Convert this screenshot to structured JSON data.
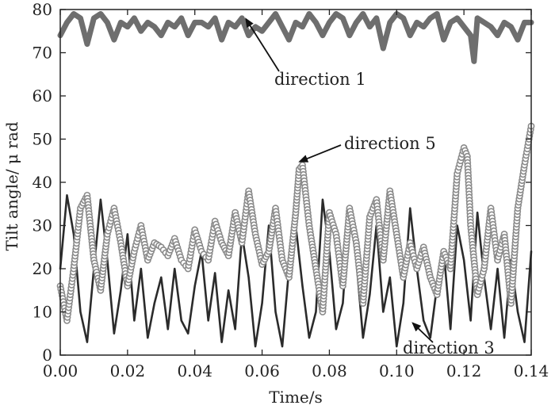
{
  "chart_data": {
    "type": "line",
    "title": "",
    "xlabel": "Time/s",
    "ylabel": "Tilt angle/ μ rad",
    "xlim": [
      0.0,
      0.14
    ],
    "ylim": [
      0,
      80
    ],
    "x_ticks": [
      "0.00",
      "0.02",
      "0.04",
      "0.06",
      "0.08",
      "0.10",
      "0.12",
      "0.14"
    ],
    "y_ticks": [
      "0",
      "10",
      "20",
      "30",
      "40",
      "50",
      "60",
      "70",
      "80"
    ],
    "grid": false,
    "colors": {
      "direction_1": "#6e6e6e",
      "direction_5": "#8a8a8a",
      "direction_3": "#2b2b2b"
    },
    "series": [
      {
        "name": "direction 1",
        "style": "thick-line",
        "x": [
          0.0,
          0.002,
          0.004,
          0.006,
          0.008,
          0.01,
          0.012,
          0.014,
          0.016,
          0.018,
          0.02,
          0.022,
          0.024,
          0.026,
          0.028,
          0.03,
          0.032,
          0.034,
          0.036,
          0.038,
          0.04,
          0.042,
          0.044,
          0.046,
          0.048,
          0.05,
          0.052,
          0.054,
          0.056,
          0.058,
          0.06,
          0.062,
          0.064,
          0.066,
          0.068,
          0.07,
          0.072,
          0.074,
          0.076,
          0.078,
          0.08,
          0.082,
          0.084,
          0.086,
          0.088,
          0.09,
          0.092,
          0.094,
          0.096,
          0.098,
          0.1,
          0.102,
          0.104,
          0.106,
          0.108,
          0.11,
          0.112,
          0.114,
          0.116,
          0.118,
          0.12,
          0.122,
          0.123,
          0.124,
          0.126,
          0.128,
          0.13,
          0.132,
          0.134,
          0.136,
          0.138,
          0.14
        ],
        "y": [
          74,
          77,
          79,
          78,
          72,
          78,
          79,
          77,
          73,
          77,
          76,
          78,
          75,
          77,
          76,
          74,
          77,
          76,
          78,
          74,
          77,
          77,
          76,
          78,
          73,
          77,
          76,
          78,
          74,
          76,
          75,
          77,
          79,
          76,
          73,
          77,
          76,
          79,
          77,
          74,
          77,
          79,
          78,
          74,
          77,
          79,
          76,
          78,
          71,
          77,
          79,
          78,
          74,
          77,
          76,
          78,
          79,
          73,
          77,
          78,
          76,
          74,
          68,
          78,
          77,
          76,
          74,
          77,
          76,
          73,
          77,
          77
        ]
      },
      {
        "name": "direction 5",
        "style": "open-circles",
        "x": [
          0.0,
          0.002,
          0.004,
          0.006,
          0.008,
          0.01,
          0.012,
          0.014,
          0.016,
          0.018,
          0.02,
          0.022,
          0.024,
          0.026,
          0.028,
          0.03,
          0.032,
          0.034,
          0.036,
          0.038,
          0.04,
          0.042,
          0.044,
          0.046,
          0.048,
          0.05,
          0.052,
          0.054,
          0.056,
          0.058,
          0.06,
          0.062,
          0.064,
          0.066,
          0.068,
          0.07,
          0.071,
          0.072,
          0.074,
          0.076,
          0.078,
          0.08,
          0.082,
          0.084,
          0.086,
          0.088,
          0.09,
          0.092,
          0.094,
          0.096,
          0.098,
          0.1,
          0.102,
          0.104,
          0.106,
          0.108,
          0.11,
          0.112,
          0.114,
          0.116,
          0.118,
          0.12,
          0.121,
          0.122,
          0.124,
          0.126,
          0.128,
          0.13,
          0.132,
          0.134,
          0.136,
          0.138,
          0.14
        ],
        "y": [
          16,
          8,
          20,
          34,
          37,
          22,
          15,
          28,
          34,
          26,
          16,
          24,
          30,
          22,
          26,
          25,
          23,
          27,
          22,
          20,
          29,
          24,
          22,
          31,
          26,
          23,
          33,
          26,
          38,
          28,
          21,
          24,
          34,
          22,
          18,
          33,
          43,
          44,
          30,
          20,
          10,
          33,
          28,
          16,
          34,
          26,
          12,
          32,
          36,
          22,
          38,
          28,
          18,
          26,
          20,
          25,
          18,
          14,
          24,
          20,
          42,
          48,
          46,
          30,
          14,
          20,
          34,
          22,
          28,
          12,
          34,
          44,
          53
        ]
      },
      {
        "name": "direction 3",
        "style": "thin-line",
        "x": [
          0.0,
          0.002,
          0.004,
          0.006,
          0.008,
          0.01,
          0.012,
          0.014,
          0.016,
          0.018,
          0.02,
          0.022,
          0.024,
          0.026,
          0.028,
          0.03,
          0.032,
          0.034,
          0.036,
          0.038,
          0.04,
          0.042,
          0.044,
          0.046,
          0.048,
          0.05,
          0.052,
          0.054,
          0.056,
          0.058,
          0.06,
          0.062,
          0.064,
          0.066,
          0.068,
          0.07,
          0.072,
          0.074,
          0.076,
          0.078,
          0.08,
          0.082,
          0.084,
          0.086,
          0.088,
          0.09,
          0.092,
          0.094,
          0.096,
          0.098,
          0.1,
          0.102,
          0.104,
          0.106,
          0.108,
          0.11,
          0.112,
          0.114,
          0.116,
          0.118,
          0.12,
          0.122,
          0.124,
          0.126,
          0.128,
          0.13,
          0.132,
          0.134,
          0.136,
          0.138,
          0.14
        ],
        "y": [
          20,
          37,
          28,
          10,
          3,
          20,
          36,
          22,
          5,
          15,
          28,
          8,
          20,
          4,
          12,
          18,
          6,
          20,
          8,
          5,
          16,
          24,
          8,
          19,
          3,
          15,
          6,
          28,
          18,
          2,
          12,
          30,
          10,
          2,
          20,
          30,
          16,
          4,
          10,
          36,
          24,
          6,
          12,
          34,
          22,
          4,
          14,
          30,
          10,
          18,
          2,
          12,
          34,
          20,
          8,
          4,
          16,
          24,
          6,
          30,
          22,
          8,
          33,
          18,
          6,
          20,
          4,
          22,
          10,
          3,
          24
        ]
      }
    ],
    "annotations": [
      {
        "text": "direction 1",
        "x": 0.0552,
        "y": 77.8
      },
      {
        "text": "direction 5",
        "x": 0.0712,
        "y": 44.8
      },
      {
        "text": "direction 3",
        "x": 0.1048,
        "y": 7.4
      }
    ]
  }
}
